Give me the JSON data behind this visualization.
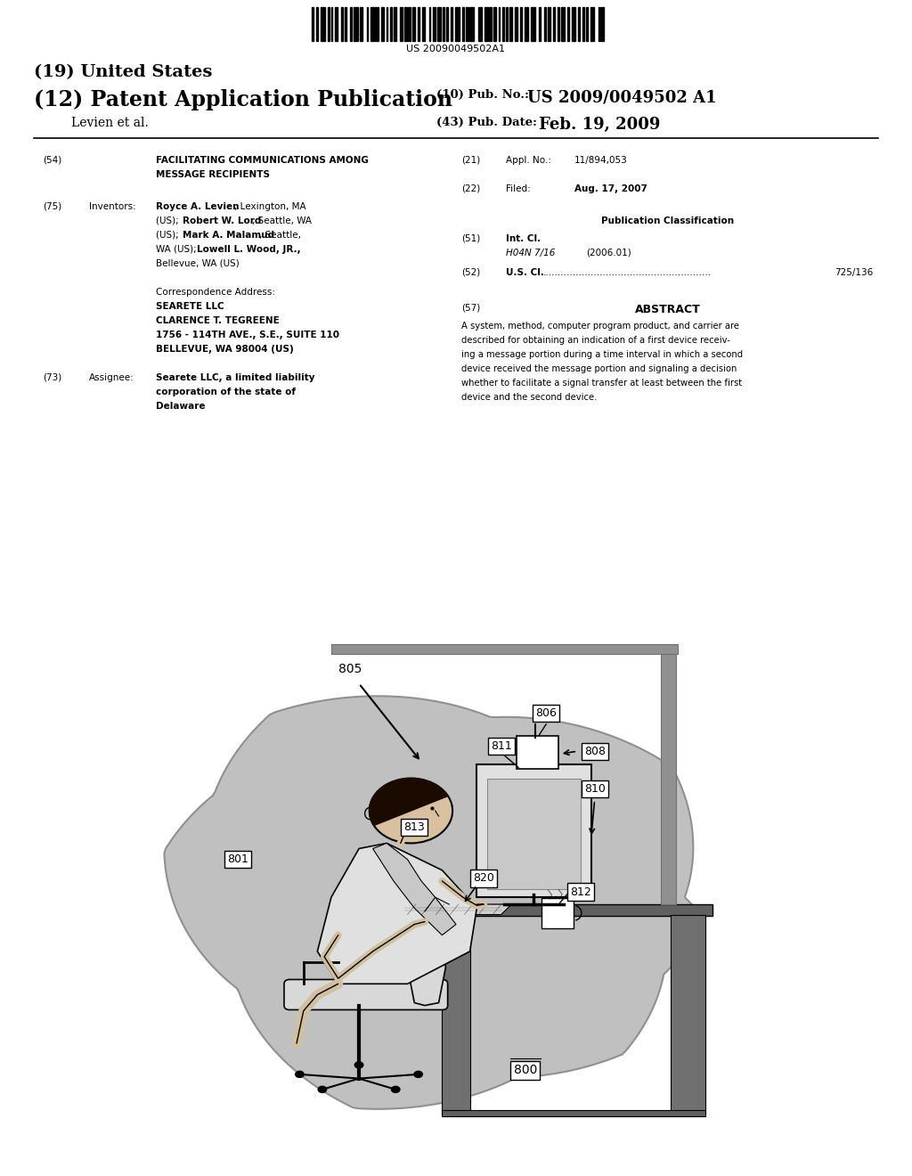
{
  "bg_color": "#ffffff",
  "barcode_text": "US 20090049502A1",
  "page_width": 10.24,
  "page_height": 13.2,
  "header": {
    "title19": "(19) United States",
    "title12": "(12) Patent Application Publication",
    "pub_no_label": "(10) Pub. No.:",
    "pub_no": "US 2009/0049502 A1",
    "inventors": "Levien et al.",
    "pub_date_label": "(43) Pub. Date:",
    "pub_date": "Feb. 19, 2009"
  },
  "left_col": {
    "f54_num": "(54)",
    "f54_line1": "FACILITATING COMMUNICATIONS AMONG",
    "f54_line2": "MESSAGE RECIPIENTS",
    "f75_num": "(75)",
    "f75_key": "Inventors:",
    "f75_inventor1_bold": "Royce A. Levien",
    "f75_inventor1_norm": ", Lexington, MA",
    "f75_line2_norm": "(US); ",
    "f75_line2_bold": "Robert W. Lord",
    "f75_line2_after": ", Seattle, WA",
    "f75_line3_norm": "(US); ",
    "f75_line3_bold": "Mark A. Malamud",
    "f75_line3_after": ", Seattle,",
    "f75_line4_norm": "WA (US); ",
    "f75_line4_bold": "Lowell L. Wood, JR.,",
    "f75_line5": "Bellevue, WA (US)",
    "corr_head": "Correspondence Address:",
    "corr1": "SEARETE LLC",
    "corr2": "CLARENCE T. TEGREENE",
    "corr3": "1756 - 114TH AVE., S.E., SUITE 110",
    "corr4": "BELLEVUE, WA 98004 (US)",
    "f73_num": "(73)",
    "f73_key": "Assignee:",
    "f73_val1": "Searete LLC, a limited liability",
    "f73_val2": "corporation of the state of",
    "f73_val3": "Delaware"
  },
  "right_col": {
    "f21_num": "(21)",
    "f21_key": "Appl. No.:",
    "f21_val": "11/894,053",
    "f22_num": "(22)",
    "f22_key": "Filed:",
    "f22_val": "Aug. 17, 2007",
    "pub_class": "Publication Classification",
    "f51_num": "(51)",
    "f51_key": "Int. Cl.",
    "f51_class": "H04N 7/16",
    "f51_date": "(2006.01)",
    "f52_num": "(52)",
    "f52_key": "U.S. Cl.",
    "f52_dots": "........................................................",
    "f52_val": "725/136",
    "f57_num": "(57)",
    "f57_head": "ABSTRACT",
    "f57_text1": "A system, method, computer program product, and carrier are",
    "f57_text2": "described for obtaining an indication of a first device receiv-",
    "f57_text3": "ing a message portion during a time interval in which a second",
    "f57_text4": "device received the message portion and signaling a decision",
    "f57_text5": "whether to facilitate a signal transfer at least between the first",
    "f57_text6": "device and the second device."
  },
  "diagram": {
    "blob_color": "#c0c0c0",
    "blob_edge": "#909090",
    "desk_color": "#808080",
    "wall_color": "#a0a0a0",
    "label_800": "800",
    "label_801": "801",
    "label_805": "805",
    "label_806": "806",
    "label_808": "808",
    "label_810": "810",
    "label_811": "811",
    "label_812": "812",
    "label_813": "813",
    "label_820": "820"
  }
}
